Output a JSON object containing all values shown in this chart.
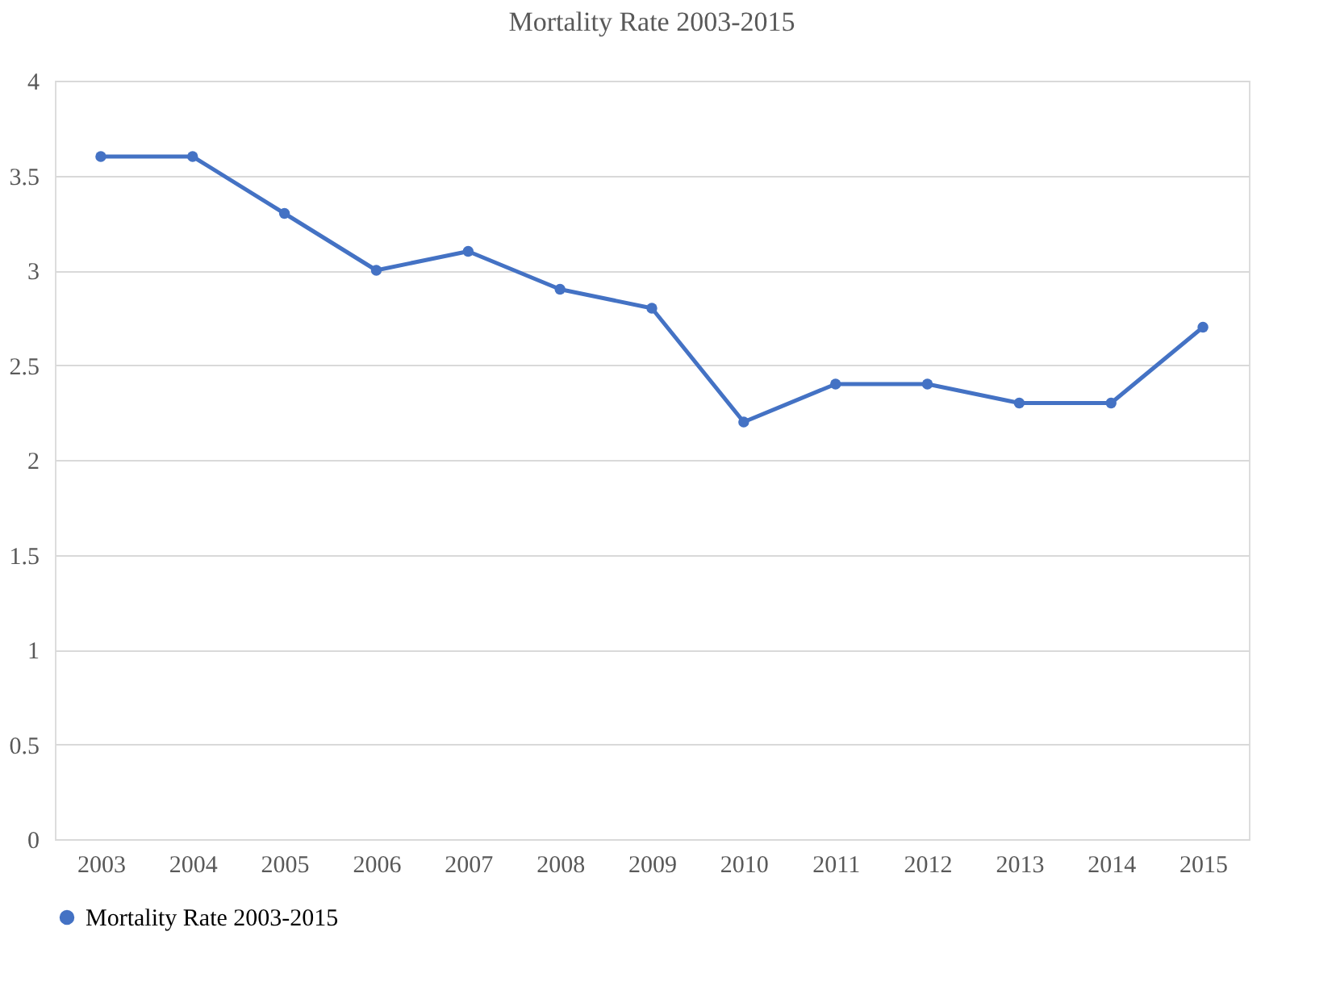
{
  "chart_data": {
    "type": "line",
    "title": "Mortality Rate 2003-2015",
    "categories": [
      "2003",
      "2004",
      "2005",
      "2006",
      "2007",
      "2008",
      "2009",
      "2010",
      "2011",
      "2012",
      "2013",
      "2014",
      "2015"
    ],
    "series": [
      {
        "name": "Mortality Rate 2003-2015",
        "color": "#4472c4",
        "values": [
          3.6,
          3.6,
          3.3,
          3.0,
          3.1,
          2.9,
          2.8,
          2.2,
          2.4,
          2.4,
          2.3,
          2.3,
          2.7
        ]
      }
    ],
    "ylim": [
      0,
      4
    ],
    "yticks": [
      0,
      0.5,
      1,
      1.5,
      2,
      2.5,
      3,
      3.5,
      4
    ],
    "grid": "y",
    "legend": "bottom",
    "marker": "circle",
    "line_style": "solid"
  }
}
